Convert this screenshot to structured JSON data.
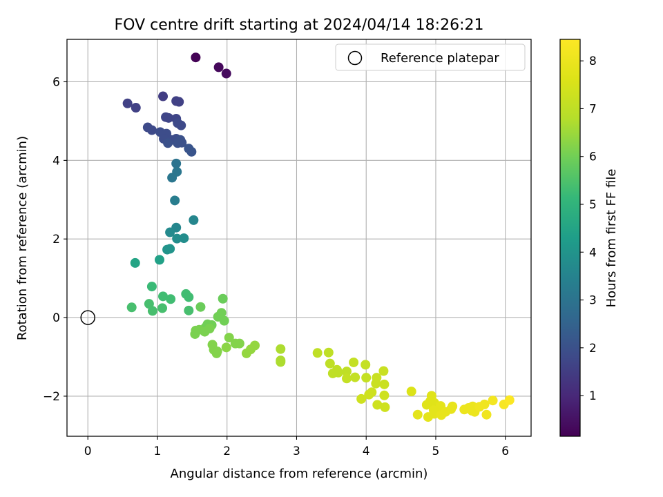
{
  "chart_data": {
    "type": "scatter",
    "title": "FOV centre drift starting at 2024/04/14 18:26:21",
    "xlabel": "Angular distance from reference (arcmin)",
    "ylabel": "Rotation from reference (arcmin)",
    "xlim": [
      -0.3,
      6.37
    ],
    "ylim": [
      -3.02,
      7.08
    ],
    "xticks": [
      0,
      1,
      2,
      3,
      4,
      5,
      6
    ],
    "yticks": [
      -2,
      0,
      2,
      4,
      6
    ],
    "grid": true,
    "legend": {
      "placement": "top-right",
      "entries": [
        "Reference platepar"
      ]
    },
    "reference_point": {
      "x": 0,
      "y": 0,
      "label": "Reference platepar"
    },
    "colorbar": {
      "label": "Hours from first FF file",
      "range": [
        0.15,
        8.45
      ],
      "ticks": [
        1,
        2,
        3,
        4,
        5,
        6,
        7,
        8
      ],
      "colormap": "viridis"
    },
    "points": [
      {
        "x": 1.55,
        "y": 6.62,
        "t": 0.2
      },
      {
        "x": 1.88,
        "y": 6.37,
        "t": 0.3
      },
      {
        "x": 1.99,
        "y": 6.21,
        "t": 0.35
      },
      {
        "x": 1.08,
        "y": 5.63,
        "t": 1.5
      },
      {
        "x": 0.57,
        "y": 5.45,
        "t": 1.6
      },
      {
        "x": 0.69,
        "y": 5.34,
        "t": 1.6
      },
      {
        "x": 1.27,
        "y": 5.51,
        "t": 1.6
      },
      {
        "x": 1.31,
        "y": 5.49,
        "t": 1.6
      },
      {
        "x": 1.12,
        "y": 5.1,
        "t": 1.7
      },
      {
        "x": 1.16,
        "y": 5.08,
        "t": 1.7
      },
      {
        "x": 1.27,
        "y": 5.06,
        "t": 1.7
      },
      {
        "x": 1.29,
        "y": 4.95,
        "t": 1.8
      },
      {
        "x": 1.34,
        "y": 4.89,
        "t": 1.8
      },
      {
        "x": 0.86,
        "y": 4.84,
        "t": 1.8
      },
      {
        "x": 0.92,
        "y": 4.77,
        "t": 1.8
      },
      {
        "x": 1.04,
        "y": 4.72,
        "t": 1.9
      },
      {
        "x": 1.13,
        "y": 4.68,
        "t": 1.9
      },
      {
        "x": 1.09,
        "y": 4.55,
        "t": 1.9
      },
      {
        "x": 1.2,
        "y": 4.52,
        "t": 1.9
      },
      {
        "x": 1.27,
        "y": 4.55,
        "t": 1.9
      },
      {
        "x": 1.33,
        "y": 4.52,
        "t": 2.0
      },
      {
        "x": 1.15,
        "y": 4.44,
        "t": 2.0
      },
      {
        "x": 1.29,
        "y": 4.44,
        "t": 2.0
      },
      {
        "x": 1.35,
        "y": 4.45,
        "t": 2.0
      },
      {
        "x": 1.45,
        "y": 4.3,
        "t": 2.1
      },
      {
        "x": 1.49,
        "y": 4.22,
        "t": 2.1
      },
      {
        "x": 1.27,
        "y": 3.92,
        "t": 3.0
      },
      {
        "x": 1.28,
        "y": 3.71,
        "t": 3.1
      },
      {
        "x": 1.21,
        "y": 3.56,
        "t": 3.1
      },
      {
        "x": 1.25,
        "y": 2.98,
        "t": 3.3
      },
      {
        "x": 1.52,
        "y": 2.48,
        "t": 3.6
      },
      {
        "x": 1.27,
        "y": 2.29,
        "t": 3.6
      },
      {
        "x": 1.18,
        "y": 2.17,
        "t": 3.7
      },
      {
        "x": 1.28,
        "y": 2.01,
        "t": 3.8
      },
      {
        "x": 1.38,
        "y": 2.02,
        "t": 3.8
      },
      {
        "x": 1.14,
        "y": 1.73,
        "t": 4.0
      },
      {
        "x": 1.18,
        "y": 1.75,
        "t": 4.0
      },
      {
        "x": 0.68,
        "y": 1.39,
        "t": 4.5
      },
      {
        "x": 1.03,
        "y": 1.47,
        "t": 4.4
      },
      {
        "x": 0.92,
        "y": 0.79,
        "t": 5.2
      },
      {
        "x": 1.41,
        "y": 0.6,
        "t": 5.3
      },
      {
        "x": 1.45,
        "y": 0.52,
        "t": 5.3
      },
      {
        "x": 1.08,
        "y": 0.54,
        "t": 5.3
      },
      {
        "x": 1.19,
        "y": 0.47,
        "t": 5.3
      },
      {
        "x": 0.88,
        "y": 0.35,
        "t": 5.4
      },
      {
        "x": 0.63,
        "y": 0.26,
        "t": 5.4
      },
      {
        "x": 1.07,
        "y": 0.24,
        "t": 5.4
      },
      {
        "x": 0.93,
        "y": 0.17,
        "t": 5.4
      },
      {
        "x": 1.45,
        "y": 0.18,
        "t": 5.4
      },
      {
        "x": 1.62,
        "y": 0.27,
        "t": 5.9
      },
      {
        "x": 1.94,
        "y": 0.48,
        "t": 5.9
      },
      {
        "x": 1.92,
        "y": 0.12,
        "t": 6.0
      },
      {
        "x": 1.87,
        "y": 0.02,
        "t": 6.0
      },
      {
        "x": 1.96,
        "y": -0.08,
        "t": 6.0
      },
      {
        "x": 1.72,
        "y": -0.17,
        "t": 6.0
      },
      {
        "x": 1.78,
        "y": -0.19,
        "t": 6.0
      },
      {
        "x": 1.69,
        "y": -0.25,
        "t": 6.0
      },
      {
        "x": 1.75,
        "y": -0.28,
        "t": 6.1
      },
      {
        "x": 1.6,
        "y": -0.31,
        "t": 6.1
      },
      {
        "x": 1.68,
        "y": -0.36,
        "t": 6.1
      },
      {
        "x": 1.55,
        "y": -0.33,
        "t": 6.1
      },
      {
        "x": 1.54,
        "y": -0.42,
        "t": 6.1
      },
      {
        "x": 2.03,
        "y": -0.51,
        "t": 6.2
      },
      {
        "x": 2.12,
        "y": -0.66,
        "t": 6.2
      },
      {
        "x": 2.18,
        "y": -0.66,
        "t": 6.2
      },
      {
        "x": 1.79,
        "y": -0.69,
        "t": 6.2
      },
      {
        "x": 1.81,
        "y": -0.82,
        "t": 6.2
      },
      {
        "x": 1.86,
        "y": -0.86,
        "t": 6.2
      },
      {
        "x": 1.85,
        "y": -0.91,
        "t": 6.2
      },
      {
        "x": 1.99,
        "y": -0.76,
        "t": 6.3
      },
      {
        "x": 2.4,
        "y": -0.71,
        "t": 6.4
      },
      {
        "x": 2.34,
        "y": -0.81,
        "t": 6.4
      },
      {
        "x": 2.28,
        "y": -0.91,
        "t": 6.4
      },
      {
        "x": 2.77,
        "y": -0.8,
        "t": 6.7
      },
      {
        "x": 2.77,
        "y": -1.09,
        "t": 6.7
      },
      {
        "x": 2.77,
        "y": -1.13,
        "t": 6.7
      },
      {
        "x": 3.3,
        "y": -0.9,
        "t": 7.0
      },
      {
        "x": 3.46,
        "y": -0.89,
        "t": 7.0
      },
      {
        "x": 3.48,
        "y": -1.17,
        "t": 7.0
      },
      {
        "x": 3.58,
        "y": -1.33,
        "t": 7.0
      },
      {
        "x": 3.52,
        "y": -1.42,
        "t": 7.0
      },
      {
        "x": 3.6,
        "y": -1.4,
        "t": 7.0
      },
      {
        "x": 3.72,
        "y": -1.37,
        "t": 7.0
      },
      {
        "x": 3.72,
        "y": -1.55,
        "t": 7.1
      },
      {
        "x": 3.82,
        "y": -1.14,
        "t": 7.1
      },
      {
        "x": 3.84,
        "y": -1.52,
        "t": 7.1
      },
      {
        "x": 3.99,
        "y": -1.2,
        "t": 7.1
      },
      {
        "x": 4.0,
        "y": -1.53,
        "t": 7.1
      },
      {
        "x": 4.25,
        "y": -1.36,
        "t": 7.2
      },
      {
        "x": 4.15,
        "y": -1.53,
        "t": 7.2
      },
      {
        "x": 4.14,
        "y": -1.68,
        "t": 7.2
      },
      {
        "x": 4.26,
        "y": -1.7,
        "t": 7.2
      },
      {
        "x": 4.08,
        "y": -1.9,
        "t": 7.3
      },
      {
        "x": 4.04,
        "y": -1.96,
        "t": 7.3
      },
      {
        "x": 3.93,
        "y": -2.07,
        "t": 7.3
      },
      {
        "x": 4.26,
        "y": -1.98,
        "t": 7.3
      },
      {
        "x": 4.16,
        "y": -2.22,
        "t": 7.3
      },
      {
        "x": 4.27,
        "y": -2.28,
        "t": 7.3
      },
      {
        "x": 4.65,
        "y": -1.88,
        "t": 7.6
      },
      {
        "x": 4.94,
        "y": -1.99,
        "t": 7.7
      },
      {
        "x": 4.92,
        "y": -2.13,
        "t": 7.7
      },
      {
        "x": 4.98,
        "y": -2.17,
        "t": 7.7
      },
      {
        "x": 4.87,
        "y": -2.22,
        "t": 7.7
      },
      {
        "x": 5.07,
        "y": -2.25,
        "t": 7.8
      },
      {
        "x": 5.05,
        "y": -2.32,
        "t": 7.8
      },
      {
        "x": 4.97,
        "y": -2.36,
        "t": 7.8
      },
      {
        "x": 4.98,
        "y": -2.45,
        "t": 7.8
      },
      {
        "x": 4.74,
        "y": -2.47,
        "t": 7.8
      },
      {
        "x": 4.89,
        "y": -2.53,
        "t": 7.8
      },
      {
        "x": 5.08,
        "y": -2.48,
        "t": 7.9
      },
      {
        "x": 5.14,
        "y": -2.4,
        "t": 7.9
      },
      {
        "x": 5.24,
        "y": -2.26,
        "t": 7.9
      },
      {
        "x": 5.22,
        "y": -2.33,
        "t": 7.9
      },
      {
        "x": 5.41,
        "y": -2.34,
        "t": 8.0
      },
      {
        "x": 5.47,
        "y": -2.3,
        "t": 8.0
      },
      {
        "x": 5.53,
        "y": -2.26,
        "t": 8.0
      },
      {
        "x": 5.58,
        "y": -2.31,
        "t": 8.0
      },
      {
        "x": 5.52,
        "y": -2.37,
        "t": 8.0
      },
      {
        "x": 5.56,
        "y": -2.4,
        "t": 8.0
      },
      {
        "x": 5.63,
        "y": -2.27,
        "t": 8.1
      },
      {
        "x": 5.7,
        "y": -2.21,
        "t": 8.1
      },
      {
        "x": 5.73,
        "y": -2.47,
        "t": 8.1
      },
      {
        "x": 5.82,
        "y": -2.11,
        "t": 8.2
      },
      {
        "x": 5.98,
        "y": -2.21,
        "t": 8.3
      },
      {
        "x": 6.06,
        "y": -2.1,
        "t": 8.4
      }
    ]
  }
}
